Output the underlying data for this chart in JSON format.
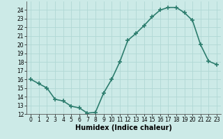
{
  "x": [
    0,
    1,
    2,
    3,
    4,
    5,
    6,
    7,
    8,
    9,
    10,
    11,
    12,
    13,
    14,
    15,
    16,
    17,
    18,
    19,
    20,
    21,
    22,
    23
  ],
  "y": [
    16.0,
    15.5,
    15.0,
    13.7,
    13.5,
    12.9,
    12.7,
    12.1,
    12.2,
    14.4,
    16.0,
    18.0,
    20.5,
    21.3,
    22.2,
    23.2,
    24.0,
    24.3,
    24.3,
    23.7,
    22.8,
    20.0,
    18.1,
    17.7
  ],
  "line_color": "#2d7d6e",
  "marker": "+",
  "marker_size": 4,
  "marker_lw": 1.2,
  "bg_color": "#cceae7",
  "grid_color": "#b0d8d4",
  "xlabel": "Humidex (Indice chaleur)",
  "ylim": [
    12,
    25
  ],
  "xlim": [
    -0.5,
    23.5
  ],
  "yticks": [
    12,
    13,
    14,
    15,
    16,
    17,
    18,
    19,
    20,
    21,
    22,
    23,
    24
  ],
  "xticks": [
    0,
    1,
    2,
    3,
    4,
    5,
    6,
    7,
    8,
    9,
    10,
    11,
    12,
    13,
    14,
    15,
    16,
    17,
    18,
    19,
    20,
    21,
    22,
    23
  ],
  "tick_fontsize": 5.5,
  "xlabel_fontsize": 7.0,
  "linewidth": 1.2
}
